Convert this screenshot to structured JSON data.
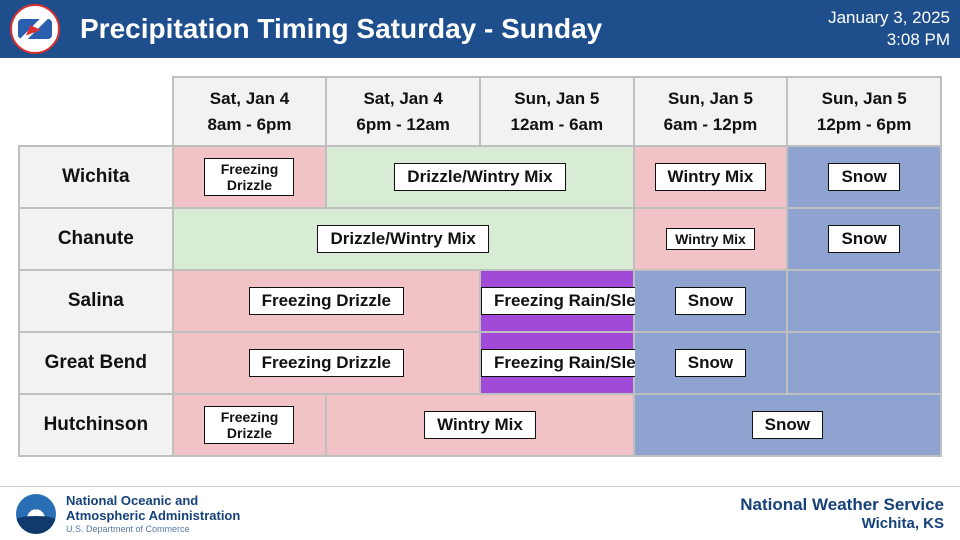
{
  "header": {
    "title": "Precipitation Timing Saturday - Sunday",
    "date": "January 3, 2025",
    "time": "3:08 PM",
    "background_color": "#1e4e8c",
    "text_color": "#ffffff"
  },
  "legend_colors": {
    "freezing_drizzle": "#f1c3c6",
    "drizzle_wintry_mix": "#d8ebd4",
    "freezing_rain_sleet": "#a24ad8",
    "snow": "#8fa3d1",
    "wintry_mix_pink": "#f1c3c6"
  },
  "columns": [
    {
      "day": "Sat, Jan 4",
      "hours": "8am - 6pm"
    },
    {
      "day": "Sat, Jan 4",
      "hours": "6pm - 12am"
    },
    {
      "day": "Sun, Jan 5",
      "hours": "12am - 6am"
    },
    {
      "day": "Sun, Jan 5",
      "hours": "6am - 12pm"
    },
    {
      "day": "Sun, Jan 5",
      "hours": "12pm - 6pm"
    }
  ],
  "rows": [
    {
      "city": "Wichita",
      "cells": [
        {
          "span": 1,
          "bg": "#f1c3c6",
          "label": "Freezing Drizzle",
          "chip_small": true
        },
        {
          "span": 2,
          "bg": "#d8ebd4",
          "label": "Drizzle/Wintry Mix"
        },
        {
          "span": 1,
          "bg": "#f1c3c6",
          "label": "Wintry Mix"
        },
        {
          "span": 1,
          "bg": "#8fa3d1",
          "label": "Snow"
        }
      ]
    },
    {
      "city": "Chanute",
      "cells": [
        {
          "span": 3,
          "bg": "#d8ebd4",
          "label": "Drizzle/Wintry Mix"
        },
        {
          "span": 1,
          "bg": "#f1c3c6",
          "label": "Wintry Mix",
          "chip_small": true
        },
        {
          "span": 1,
          "bg": "#8fa3d1",
          "label": "Snow"
        }
      ]
    },
    {
      "city": "Salina",
      "cells": [
        {
          "span": 2,
          "bg": "#f1c3c6",
          "label": "Freezing Drizzle"
        },
        {
          "span": 1,
          "bg": "#a24ad8",
          "label": "Freezing Rain/Sleet"
        },
        {
          "span": 1,
          "bg": "#8fa3d1",
          "label": "Snow"
        },
        {
          "span": 1,
          "bg": "#8fa3d1",
          "label": ""
        }
      ]
    },
    {
      "city": "Great Bend",
      "cells": [
        {
          "span": 2,
          "bg": "#f1c3c6",
          "label": "Freezing Drizzle"
        },
        {
          "span": 1,
          "bg": "#a24ad8",
          "label": "Freezing Rain/Sleet"
        },
        {
          "span": 1,
          "bg": "#8fa3d1",
          "label": "Snow"
        },
        {
          "span": 1,
          "bg": "#8fa3d1",
          "label": ""
        }
      ]
    },
    {
      "city": "Hutchinson",
      "cells": [
        {
          "span": 1,
          "bg": "#f1c3c6",
          "label": "Freezing Drizzle",
          "chip_small": true
        },
        {
          "span": 2,
          "bg": "#f1c3c6",
          "label": "Wintry Mix"
        },
        {
          "span": 2,
          "bg": "#8fa3d1",
          "label": "Snow"
        }
      ]
    }
  ],
  "footer": {
    "noaa_line1": "National Oceanic and",
    "noaa_line2": "Atmospheric Administration",
    "noaa_line3": "U.S. Department of Commerce",
    "nws_line1": "National Weather Service",
    "nws_line2": "Wichita, KS"
  },
  "style": {
    "grid_border_color": "#bfbfbf",
    "header_cell_bg": "#f2f2f2",
    "chip_bg": "#ffffff",
    "chip_border": "#111111",
    "body_font_fallback": "Arial"
  }
}
